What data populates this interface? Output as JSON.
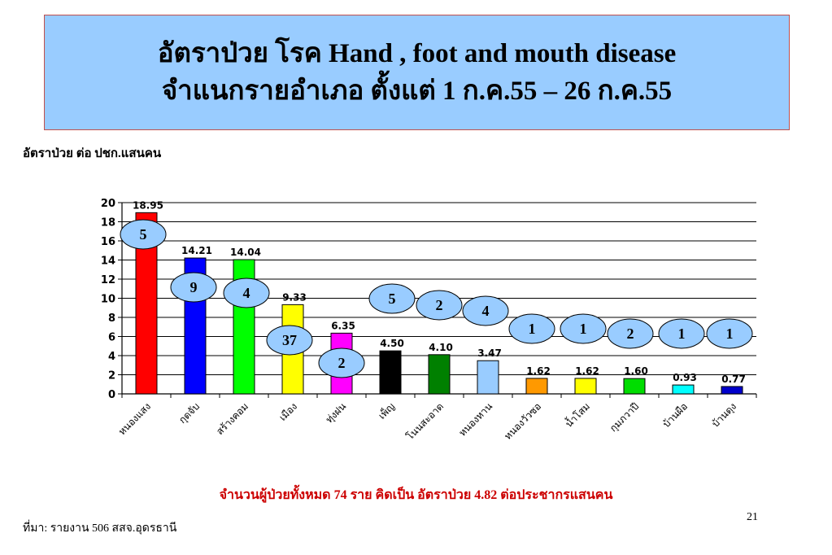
{
  "title": {
    "line1": "อัตราป่วย โรค Hand , foot and mouth disease",
    "line2": "จำแนกรายอำเภอ ตั้งแต่ 1 ก.ค.55 – 26 ก.ค.55"
  },
  "ylabel_text": "อัตราป่วย ต่อ ปชก.แสนคน",
  "summary_text": "จำนวนผู้ป่วยทั้งหมด 74 ราย คิดเป็น อัตราป่วย 4.82 ต่อประชากรแสนคน",
  "page_number": "21",
  "source_text": "ที่มา: รายงาน 506 สสจ.อุดรธานี",
  "chart_data": {
    "type": "bar",
    "title": "อัตราป่วย โรค Hand , foot and mouth disease จำแนกรายอำเภอ ตั้งแต่ 1 ก.ค.55 – 26 ก.ค.55",
    "ylabel": "อัตราป่วย ต่อ ปชก.แสนคน",
    "xlabel": "",
    "ylim": [
      0,
      20
    ],
    "yticks": [
      0,
      2,
      4,
      6,
      8,
      10,
      12,
      14,
      16,
      18,
      20
    ],
    "grid": true,
    "categories": [
      "หนองแสง",
      "กุดจับ",
      "สร้างคอม",
      "เมือง",
      "ทุ่งฝน",
      "เพ็ญ",
      "โนนสะอาด",
      "หนองหาน",
      "หนองวัวซอ",
      "น้ำโสม",
      "กุมภวาปี",
      "บ้านผือ",
      "บ้านดุง"
    ],
    "values": [
      18.95,
      14.21,
      14.04,
      9.33,
      6.35,
      4.5,
      4.1,
      3.47,
      1.62,
      1.62,
      1.6,
      0.93,
      0.77
    ],
    "value_labels": [
      "18.95",
      "14.21",
      "14.04",
      "9.33",
      "6.35",
      "4.50",
      "4.10",
      "3.47",
      "1.62",
      "1.62",
      "1.60",
      "0.93",
      "0.77"
    ],
    "case_counts": [
      "5",
      "9",
      "4",
      "37",
      "2",
      "5",
      "2",
      "4",
      "1",
      "1",
      "2",
      "1",
      "1"
    ],
    "colors": [
      "#ff0000",
      "#0000ff",
      "#00ff00",
      "#ffff00",
      "#ff00ff",
      "#000000",
      "#008000",
      "#99ccff",
      "#ff9900",
      "#ffff00",
      "#00dd00",
      "#00ffff",
      "#0000cc"
    ],
    "bubble_color": "#99ccff"
  }
}
